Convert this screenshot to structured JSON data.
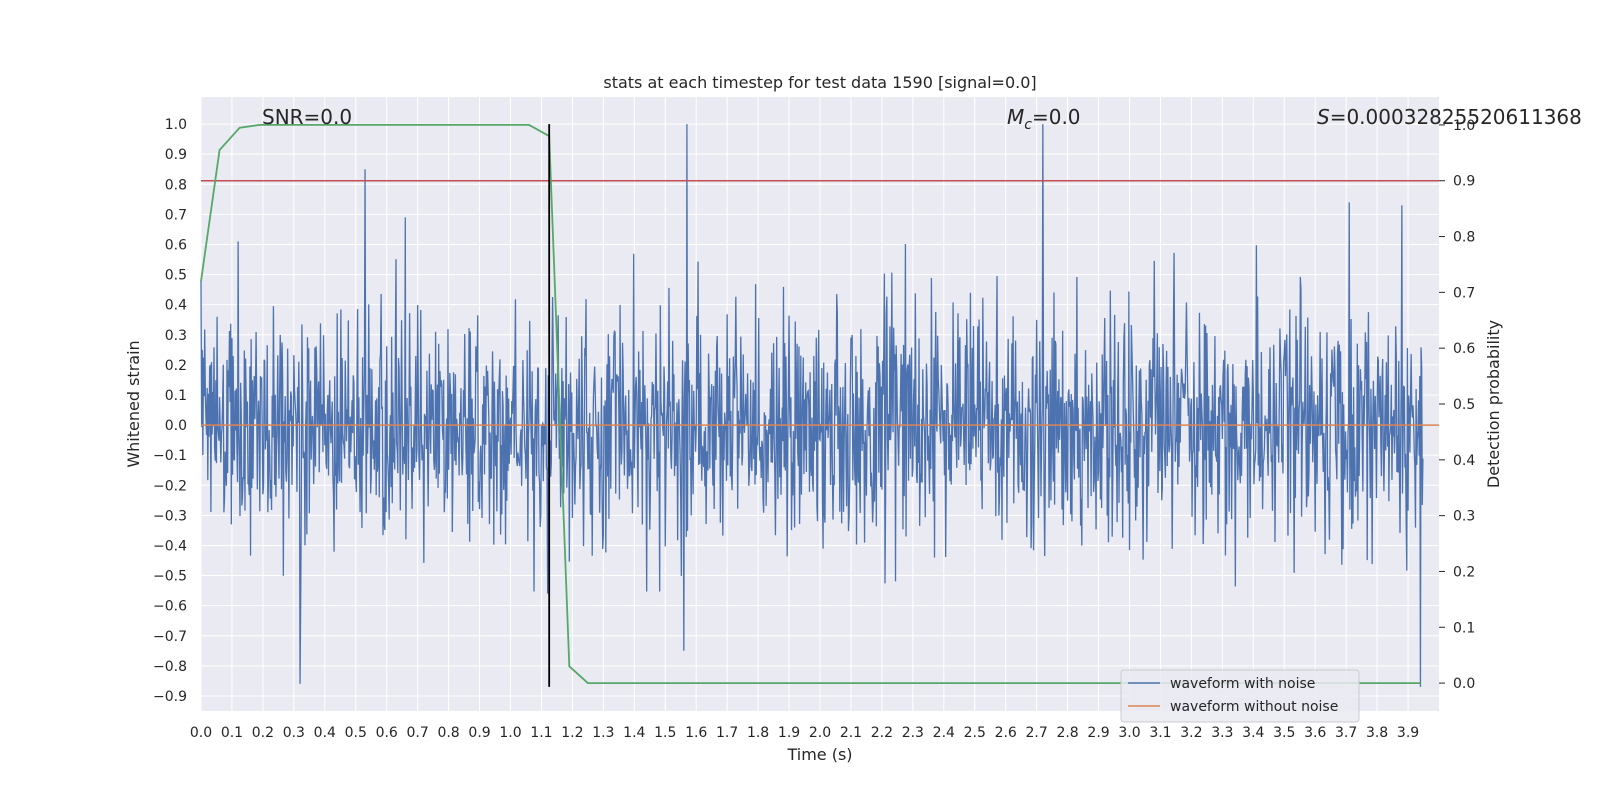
{
  "chart_data": {
    "type": "line",
    "title": "stats at each timestep for test data 1590 [signal=0.0]",
    "xlabel": "Time (s)",
    "ylabel": "Whitened strain",
    "ylabel_right": "Detection probability",
    "xlim": [
      0.0,
      4.0
    ],
    "ylim": [
      -0.95,
      1.09
    ],
    "ylim_right": [
      -0.05,
      1.05
    ],
    "xticks": [
      "0.0",
      "0.1",
      "0.2",
      "0.3",
      "0.4",
      "0.5",
      "0.6",
      "0.7",
      "0.8",
      "0.9",
      "1.0",
      "1.1",
      "1.2",
      "1.3",
      "1.4",
      "1.5",
      "1.6",
      "1.7",
      "1.8",
      "1.9",
      "2.0",
      "2.1",
      "2.2",
      "2.3",
      "2.4",
      "2.5",
      "2.6",
      "2.7",
      "2.8",
      "2.9",
      "3.0",
      "3.1",
      "3.2",
      "3.3",
      "3.4",
      "3.5",
      "3.6",
      "3.7",
      "3.8",
      "3.9"
    ],
    "yticks": [
      "-0.9",
      "-0.8",
      "-0.7",
      "-0.6",
      "-0.5",
      "-0.4",
      "-0.3",
      "-0.2",
      "-0.1",
      "0.0",
      "0.1",
      "0.2",
      "0.3",
      "0.4",
      "0.5",
      "0.6",
      "0.7",
      "0.8",
      "0.9",
      "1.0"
    ],
    "yticks_right": [
      "0.0",
      "0.1",
      "0.2",
      "0.3",
      "0.4",
      "0.5",
      "0.6",
      "0.7",
      "0.8",
      "0.9",
      "1.0"
    ],
    "annotations": {
      "snr": "SNR=0.0",
      "mc_symbol": "M",
      "mc_sub": "c",
      "mc_value": "=0.0",
      "s_symbol": "S",
      "s_value": "=0.00032825520611368"
    },
    "threshold": 0.9,
    "marker_time": 1.125,
    "grid": true,
    "legend_position": "lower-right",
    "series": [
      {
        "name": "waveform with noise",
        "color": "#4c72b0",
        "axis": "left",
        "sample_rate": 500,
        "peaks": [
          [
            0.0,
            0.48
          ],
          [
            0.12,
            0.61
          ],
          [
            0.32,
            -0.86
          ],
          [
            0.53,
            0.85
          ],
          [
            0.66,
            0.69
          ],
          [
            1.12,
            0.6
          ],
          [
            1.12,
            -0.56
          ],
          [
            1.57,
            1.0
          ],
          [
            1.56,
            -0.75
          ],
          [
            2.72,
            1.0
          ],
          [
            3.94,
            -0.87
          ],
          [
            3.71,
            0.74
          ],
          [
            3.88,
            0.73
          ]
        ]
      },
      {
        "name": "waveform without noise",
        "color": "#dd8452",
        "axis": "left",
        "values": [
          0.0
        ]
      },
      {
        "name": "detection probability",
        "color": "#55a868",
        "axis": "right",
        "x": [
          0.0,
          0.06,
          0.125,
          0.19,
          1.06,
          1.125,
          1.19,
          1.25,
          1.31,
          3.94
        ],
        "values": [
          0.72,
          0.955,
          0.995,
          1.0,
          1.0,
          0.98,
          0.03,
          0.0,
          0.0,
          0.0
        ]
      }
    ],
    "colors": {
      "background": "#eaeaf2",
      "grid": "#ffffff",
      "threshold": "#c44e52",
      "marker": "#000000",
      "text": "#262626"
    }
  }
}
